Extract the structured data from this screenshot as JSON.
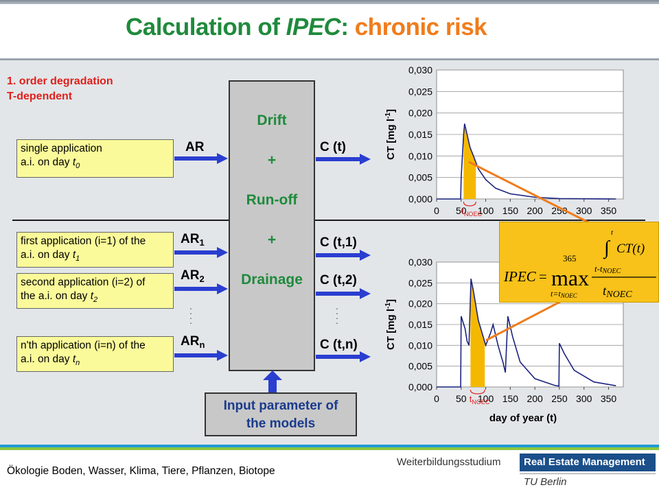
{
  "title": {
    "part1": "Calculation of ",
    "italic": "IPEC",
    "colon": ": ",
    "part2": "chronic risk"
  },
  "order_label": "1. order degradation\nT-dependent",
  "inputs": {
    "single_line1": "single application",
    "single_line2a": "a.i. on day ",
    "single_var": "t",
    "single_sub": "0",
    "first_line1": "first application (i=1) of the",
    "first_line2a": "a.i. on day ",
    "first_var": "t",
    "first_sub": "1",
    "second_line1": "second application (i=2) of",
    "second_line2a": "the a.i. on day ",
    "second_var": "t",
    "second_sub": "2",
    "nth_line1": "n'th application (i=n) of the",
    "nth_line2a": "a.i. on day  ",
    "nth_var": "t",
    "nth_sub": "n"
  },
  "arrow_labels": {
    "ar": "AR",
    "ar1_base": "AR",
    "ar1_sub": "1",
    "ar2_base": "AR",
    "ar2_sub": "2",
    "arn_base": "AR",
    "arn_sub": "n"
  },
  "center": {
    "drift": "Drift",
    "plus1": "+",
    "runoff": "Run-off",
    "plus2": "+",
    "drainage": "Drainage"
  },
  "outputs": {
    "c_t": "C (t)",
    "c_t1": "C (t,1)",
    "c_t2": "C (t,2)",
    "c_tn": "C (t,n)"
  },
  "input_params": {
    "line1": "Input parameter of",
    "line2": "the models"
  },
  "formula": {
    "ipec": "IPEC",
    "eq": "=",
    "max": "max",
    "upper": "365",
    "lower": "t=t",
    "lower_sub": "NOEC",
    "int_upper": "t",
    "integrand": "CT(t)",
    "int_lower": "t-t",
    "int_lower_sub": "NOEC",
    "denom": "t",
    "denom_sub": "NOEC"
  },
  "footer": {
    "text": "Ökologie Boden, Wasser, Klima, Tiere, Pflanzen, Biotope",
    "wbs": "Weiterbildungsstudium",
    "rem": "Real Estate Management",
    "tub": "TU Berlin"
  },
  "colors": {
    "line": "#1a237e",
    "fill": "#f5b800",
    "arrow_blue": "#2a3ed0",
    "orange": "#f07c1c",
    "green": "#1f8a3c"
  },
  "chart_data": [
    {
      "type": "line",
      "ylabel_main": "CT [mg l",
      "ylabel_sup": "-1",
      "ylabel_end": "]",
      "xlabel": "",
      "ylim": [
        0,
        0.03
      ],
      "xlim": [
        0,
        365
      ],
      "yticks": [
        "0,030",
        "0,025",
        "0,020",
        "0,015",
        "0,010",
        "0,005",
        "0,000"
      ],
      "xticks": [
        "0",
        "50",
        "100",
        "150",
        "200",
        "250",
        "300",
        "350"
      ],
      "annotation_t": "t",
      "annotation_sub": "NOEC",
      "series": [
        {
          "values": [
            [
              0,
              0
            ],
            [
              49,
              0
            ],
            [
              50,
              0.005
            ],
            [
              55,
              0.015
            ],
            [
              57,
              0.0175
            ],
            [
              62,
              0.015
            ],
            [
              68,
              0.012
            ],
            [
              75,
              0.01
            ],
            [
              85,
              0.007
            ],
            [
              100,
              0.0045
            ],
            [
              120,
              0.0025
            ],
            [
              150,
              0.0012
            ],
            [
              200,
              0.0004
            ],
            [
              250,
              0.0001
            ],
            [
              365,
              0
            ]
          ]
        }
      ],
      "shaded_range": [
        55,
        80
      ]
    },
    {
      "type": "line",
      "ylabel_main": "CT [mg l",
      "ylabel_sup": "-1",
      "ylabel_end": "]",
      "xlabel": "day of year (t)",
      "ylim": [
        0,
        0.03
      ],
      "xlim": [
        0,
        365
      ],
      "yticks": [
        "0,030",
        "0,025",
        "0,020",
        "0,015",
        "0,010",
        "0,005",
        "0,000"
      ],
      "xticks": [
        "0",
        "50",
        "100",
        "150",
        "200",
        "250",
        "300",
        "350"
      ],
      "annotation_t": "t",
      "annotation_sub": "NOEC",
      "series": [
        {
          "values": [
            [
              0,
              0
            ],
            [
              49,
              0
            ],
            [
              50,
              0.017
            ],
            [
              58,
              0.014
            ],
            [
              62,
              0.011
            ],
            [
              66,
              0.01
            ],
            [
              70,
              0.026
            ],
            [
              75,
              0.023
            ],
            [
              85,
              0.016
            ],
            [
              100,
              0.01
            ],
            [
              110,
              0.013
            ],
            [
              115,
              0.015
            ],
            [
              125,
              0.01
            ],
            [
              135,
              0.006
            ],
            [
              140,
              0.0035
            ],
            [
              145,
              0.017
            ],
            [
              155,
              0.012
            ],
            [
              170,
              0.006
            ],
            [
              200,
              0.002
            ],
            [
              240,
              0.0004
            ],
            [
              249,
              0.0002
            ],
            [
              250,
              0.0105
            ],
            [
              260,
              0.008
            ],
            [
              280,
              0.004
            ],
            [
              320,
              0.0012
            ],
            [
              365,
              0.0003
            ]
          ]
        }
      ],
      "shaded_range": [
        69,
        98
      ]
    }
  ]
}
